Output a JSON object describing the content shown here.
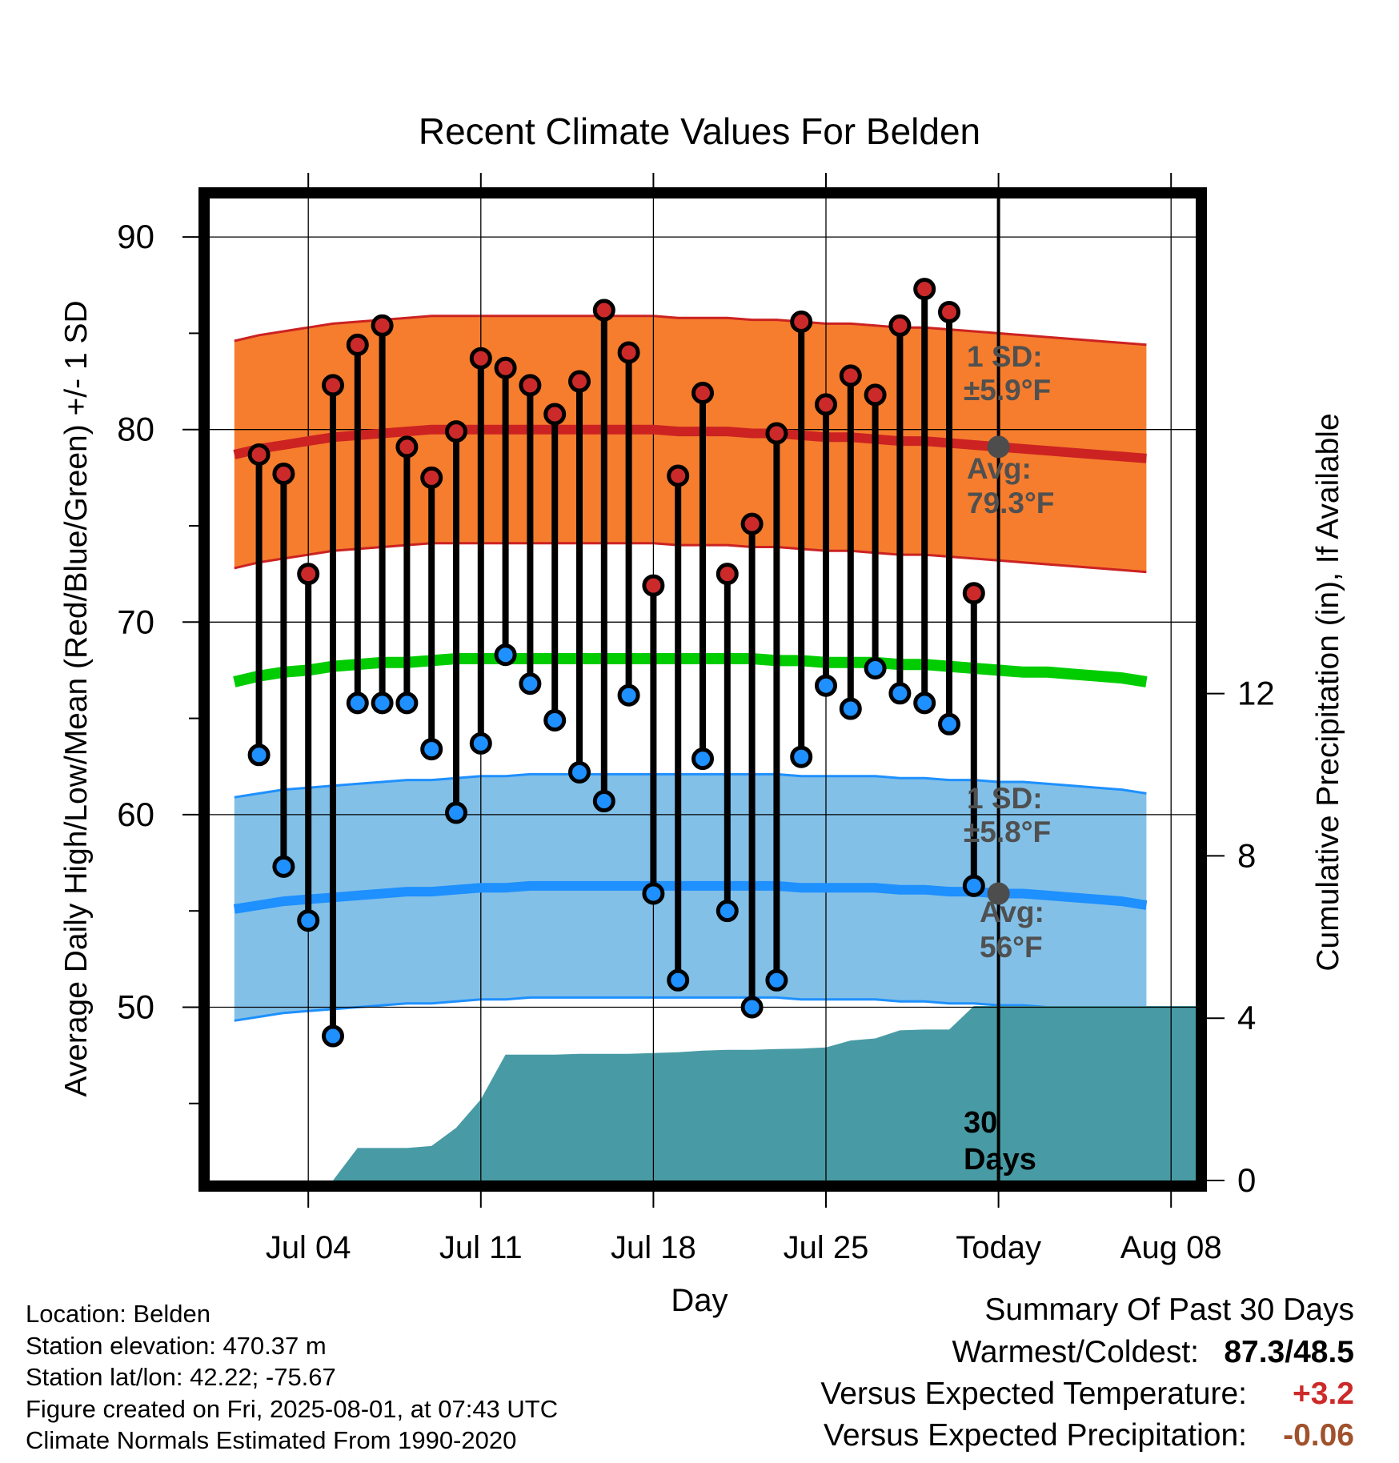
{
  "chart_data": {
    "type": "line",
    "title": "Recent Climate Values For Belden",
    "xlabel": "Day",
    "ylabel": "Average Daily High/Low/Mean (Red/Blue/Green) +/- 1 SD",
    "y2label": "Cumulative Precipitation (in), If Available",
    "x_day_range": [
      -1,
      39
    ],
    "ylim": [
      41,
      92
    ],
    "y2lim": [
      0,
      24.2
    ],
    "y_ticks": [
      90,
      80,
      70,
      60,
      50
    ],
    "y2_ticks": [
      12,
      8,
      4,
      0
    ],
    "x_ticks": [
      {
        "day": 3,
        "label": "Jul 04"
      },
      {
        "day": 10,
        "label": "Jul 11"
      },
      {
        "day": 17,
        "label": "Jul 18"
      },
      {
        "day": 24,
        "label": "Jul 25"
      },
      {
        "day": 31,
        "label": "Today"
      },
      {
        "day": 38,
        "label": "Aug 08"
      }
    ],
    "today_day": 31,
    "highs": [
      78.7,
      77.7,
      72.5,
      82.3,
      84.4,
      85.4,
      79.1,
      77.5,
      79.9,
      83.7,
      83.2,
      82.3,
      80.8,
      82.5,
      86.2,
      84.0,
      71.9,
      77.6,
      81.9,
      72.5,
      75.1,
      79.8,
      85.6,
      81.3,
      82.8,
      81.8,
      85.4,
      87.3,
      86.1,
      71.5
    ],
    "lows": [
      63.1,
      57.3,
      54.5,
      48.5,
      65.8,
      65.8,
      65.8,
      63.4,
      60.1,
      63.7,
      68.3,
      66.8,
      64.9,
      62.2,
      60.7,
      66.2,
      55.9,
      51.4,
      62.9,
      55.0,
      50.0,
      51.4,
      63.0,
      66.7,
      65.5,
      67.6,
      66.3,
      65.8,
      64.7,
      56.3
    ],
    "normal_high": [
      78.7,
      79.0,
      79.2,
      79.4,
      79.6,
      79.7,
      79.8,
      79.9,
      80.0,
      80.0,
      80.0,
      80.0,
      80.0,
      80.0,
      80.0,
      80.0,
      80.0,
      80.0,
      79.9,
      79.9,
      79.9,
      79.8,
      79.8,
      79.7,
      79.6,
      79.6,
      79.5,
      79.4,
      79.4,
      79.3,
      79.2,
      79.1,
      79.0,
      78.9,
      78.8,
      78.7,
      78.6,
      78.5
    ],
    "normal_low": [
      55.1,
      55.3,
      55.5,
      55.6,
      55.7,
      55.8,
      55.9,
      56.0,
      56.0,
      56.1,
      56.2,
      56.2,
      56.3,
      56.3,
      56.3,
      56.3,
      56.3,
      56.3,
      56.3,
      56.3,
      56.3,
      56.3,
      56.3,
      56.2,
      56.2,
      56.2,
      56.2,
      56.1,
      56.1,
      56.0,
      56.0,
      55.9,
      55.9,
      55.8,
      55.7,
      55.6,
      55.5,
      55.3
    ],
    "normal_mean": [
      66.9,
      67.2,
      67.4,
      67.5,
      67.7,
      67.8,
      67.9,
      67.9,
      68.0,
      68.1,
      68.1,
      68.1,
      68.1,
      68.1,
      68.1,
      68.1,
      68.1,
      68.1,
      68.1,
      68.1,
      68.1,
      68.1,
      68.0,
      68.0,
      67.9,
      67.9,
      67.9,
      67.8,
      67.8,
      67.7,
      67.6,
      67.5,
      67.4,
      67.4,
      67.3,
      67.2,
      67.1,
      66.9
    ],
    "high_sd": 5.9,
    "low_sd": 5.8,
    "cum_precip_days": [
      4,
      5,
      6,
      7,
      8,
      9,
      10,
      11,
      12,
      13,
      14,
      15,
      16,
      17,
      18,
      19,
      20,
      21,
      22,
      23,
      24,
      25,
      26,
      27,
      28,
      29,
      30,
      39
    ],
    "cum_precip": [
      0,
      0.8,
      0.8,
      0.8,
      0.85,
      1.3,
      2.0,
      3.1,
      3.1,
      3.1,
      3.12,
      3.12,
      3.12,
      3.14,
      3.16,
      3.2,
      3.22,
      3.22,
      3.24,
      3.25,
      3.28,
      3.45,
      3.5,
      3.7,
      3.72,
      3.72,
      4.3,
      4.3
    ],
    "annotations": {
      "high_sd_label": "1 SD:",
      "high_sd_value": "±5.9°F",
      "high_avg_label": "Avg:",
      "high_avg_value": "79.3°F",
      "low_sd_label": "1 SD:",
      "low_sd_value": "±5.8°F",
      "low_avg_label": "Avg:",
      "low_avg_value": "56°F",
      "window_line1": "30",
      "window_line2": "Days"
    },
    "colors": {
      "high_band": "#f57d2d",
      "high_band_edge": "#cc2222",
      "high_mean": "#cc2222",
      "low_band": "#82c0e8",
      "low_band_edge": "#1e90ff",
      "low_mean": "#1e90ff",
      "mean": "#00cc00",
      "precip": "#489ba5",
      "high_marker": "#cc2a2a",
      "low_marker": "#1e90ff",
      "today_marker": "#4d4d4d",
      "annotation": "#505050"
    }
  },
  "footer": {
    "location": "Location: Belden",
    "elevation": "Station elevation: 470.37 m",
    "latlon": "Station lat/lon: 42.22; -75.67",
    "created": "Figure created on Fri, 2025-08-01, at 07:43 UTC",
    "normals": "Climate Normals Estimated From 1990-2020"
  },
  "summary": {
    "title": "Summary Of Past 30 Days",
    "warmest_coldest_label": "Warmest/Coldest:",
    "warmest_coldest_value": "87.3/48.5",
    "temp_label": "Versus Expected Temperature:",
    "temp_value": "+3.2",
    "precip_label": "Versus Expected Precipitation:",
    "precip_value": "-0.06"
  }
}
